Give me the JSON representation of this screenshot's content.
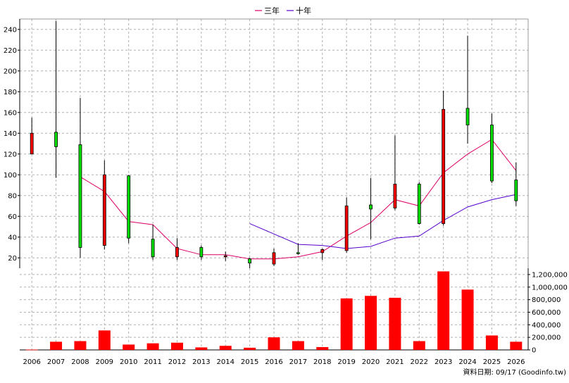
{
  "chart_data": [
    {
      "type": "candlestick",
      "x": [
        "2006",
        "2007",
        "2008",
        "2009",
        "2010",
        "2011",
        "2012",
        "2013",
        "2014",
        "2015",
        "2016",
        "2017",
        "2018",
        "2019",
        "2020",
        "2021",
        "2022",
        "2023",
        "2024",
        "2025",
        "2026"
      ],
      "ohlc": [
        {
          "open": 140,
          "high": 155,
          "low": 120,
          "close": 120,
          "color": "#ff0000"
        },
        {
          "open": 127,
          "high": 248,
          "low": 97,
          "close": 141,
          "color": "#00dd00"
        },
        {
          "open": 30,
          "high": 174,
          "low": 20,
          "close": 129,
          "color": "#00dd00"
        },
        {
          "open": 100,
          "high": 114,
          "low": 28,
          "close": 32,
          "color": "#ff0000"
        },
        {
          "open": 39,
          "high": 100,
          "low": 34,
          "close": 99,
          "color": "#00dd00"
        },
        {
          "open": 21,
          "high": 52,
          "low": 18,
          "close": 38,
          "color": "#00dd00"
        },
        {
          "open": 30,
          "high": 39,
          "low": 18,
          "close": 21,
          "color": "#ff0000"
        },
        {
          "open": 21,
          "high": 32,
          "low": 18,
          "close": 30,
          "color": "#00dd00"
        },
        {
          "open": 22,
          "high": 26,
          "low": 17,
          "close": 21,
          "color": "#ff0000"
        },
        {
          "open": 15,
          "high": 20,
          "low": 10,
          "close": 19,
          "color": "#00dd00"
        },
        {
          "open": 25,
          "high": 29,
          "low": 12,
          "close": 14,
          "color": "#ff0000"
        },
        {
          "open": 24,
          "high": 34,
          "low": 23,
          "close": 25,
          "color": "#00dd00"
        },
        {
          "open": 28,
          "high": 29,
          "low": 18,
          "close": 25,
          "color": "#ff0000"
        },
        {
          "open": 70,
          "high": 78,
          "low": 25,
          "close": 27,
          "color": "#ff0000"
        },
        {
          "open": 67,
          "high": 97,
          "low": 38,
          "close": 71,
          "color": "#00dd00"
        },
        {
          "open": 91,
          "high": 138,
          "low": 66,
          "close": 68,
          "color": "#ff0000"
        },
        {
          "open": 53,
          "high": 93,
          "low": 52,
          "close": 91,
          "color": "#00dd00"
        },
        {
          "open": 163,
          "high": 181,
          "low": 51,
          "close": 53,
          "color": "#ff0000"
        },
        {
          "open": 148,
          "high": 234,
          "low": 130,
          "close": 164,
          "color": "#00dd00"
        },
        {
          "open": 94,
          "high": 159,
          "low": 92,
          "close": 148,
          "color": "#00dd00"
        },
        {
          "open": 75,
          "high": 112,
          "low": 70,
          "close": 95,
          "color": "#00dd00"
        }
      ],
      "series": [
        {
          "name": "三年",
          "color": "#dd0066",
          "values": [
            null,
            null,
            98,
            84,
            55,
            52,
            29,
            23,
            23,
            19,
            19,
            21,
            26,
            41,
            54,
            76,
            70,
            102,
            120,
            134,
            104
          ]
        },
        {
          "name": "十年",
          "color": "#5500cc",
          "values": [
            null,
            null,
            null,
            null,
            null,
            null,
            null,
            null,
            null,
            53,
            43,
            33,
            32,
            29,
            31,
            39,
            41,
            56,
            69,
            76,
            81
          ]
        }
      ],
      "ylim": [
        10,
        250
      ],
      "yticks": [
        20,
        40,
        60,
        80,
        100,
        120,
        140,
        160,
        180,
        200,
        220,
        240
      ],
      "grid": true,
      "legend": "top-center"
    },
    {
      "type": "bar",
      "x": [
        "2006",
        "2007",
        "2008",
        "2009",
        "2010",
        "2011",
        "2012",
        "2013",
        "2014",
        "2015",
        "2016",
        "2017",
        "2018",
        "2019",
        "2020",
        "2021",
        "2022",
        "2023",
        "2024",
        "2025",
        "2026"
      ],
      "values": [
        5000,
        130000,
        140000,
        310000,
        85000,
        105000,
        115000,
        40000,
        65000,
        35000,
        200000,
        140000,
        45000,
        820000,
        860000,
        830000,
        140000,
        1250000,
        960000,
        230000,
        130000
      ],
      "color": "#ff0000",
      "ylim": [
        0,
        1300000
      ],
      "yticks": [
        "0",
        "200,000",
        "400,000",
        "600,000",
        "800,000",
        "1,000,000",
        "1,200,000"
      ],
      "grid": true
    }
  ],
  "legend": {
    "items": [
      {
        "label": "三年",
        "color": "#dd0066"
      },
      {
        "label": "十年",
        "color": "#5500cc"
      }
    ]
  },
  "source_text": "資料日期: 09/17  (Goodinfo.tw)"
}
